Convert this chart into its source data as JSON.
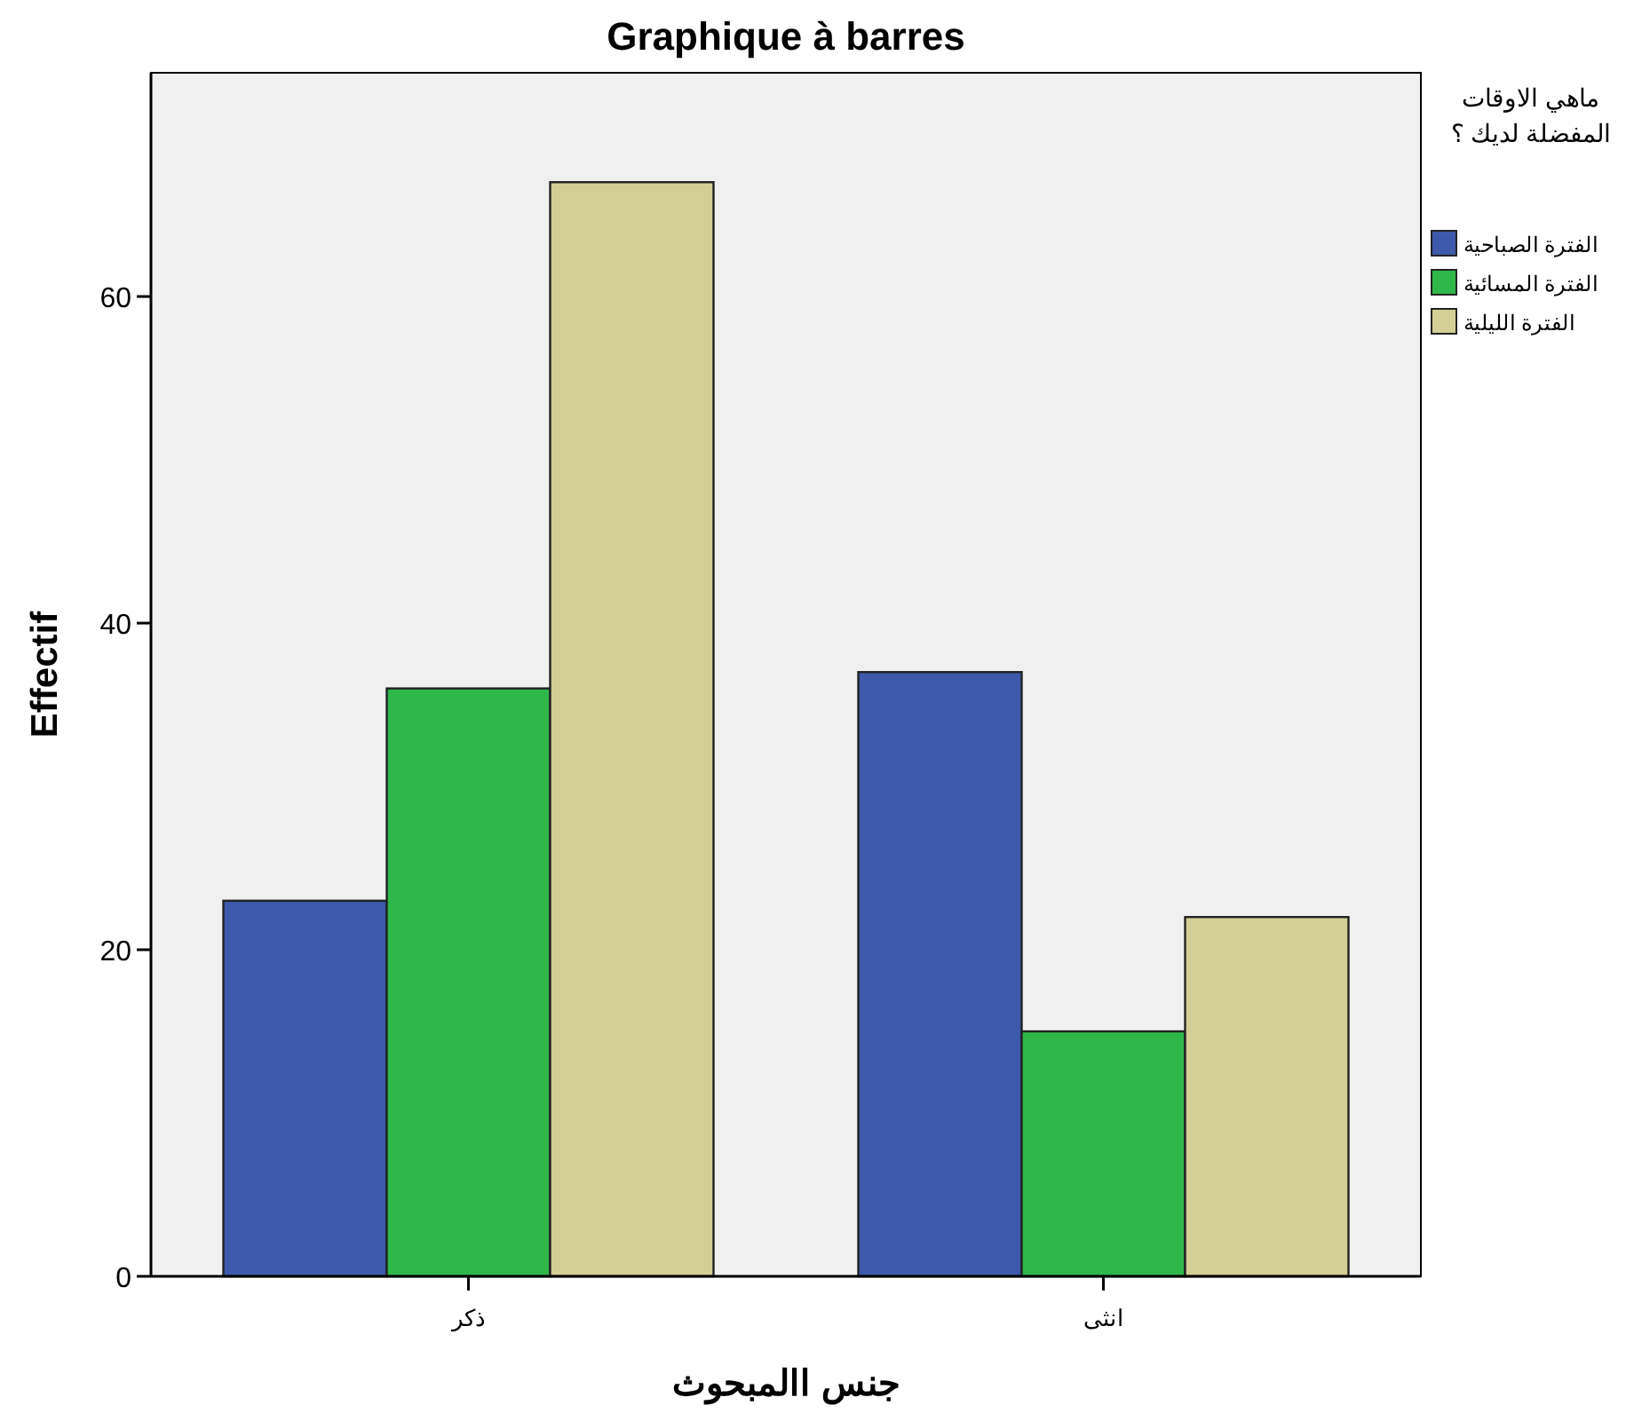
{
  "chart_data": {
    "type": "bar",
    "title": "Graphique à barres",
    "xlabel": "جنس االمبحوث",
    "ylabel": "Effectif",
    "legend_title": "ماهي الاوقات المفضلة لديك ؟",
    "categories": [
      "ذكر",
      "انثى"
    ],
    "series": [
      {
        "name": "الفترة الصباحية",
        "color": "#3d59ab",
        "values": [
          23,
          37
        ]
      },
      {
        "name": "الفترة المسائية",
        "color": "#2fb84a",
        "values": [
          36,
          15
        ]
      },
      {
        "name": "الفترة الليلية",
        "color": "#d3ce96",
        "values": [
          67,
          22
        ]
      }
    ],
    "ylim": [
      0,
      73.7
    ],
    "yticks": [
      0,
      20,
      40,
      60
    ],
    "grid": false,
    "legend": "right"
  }
}
